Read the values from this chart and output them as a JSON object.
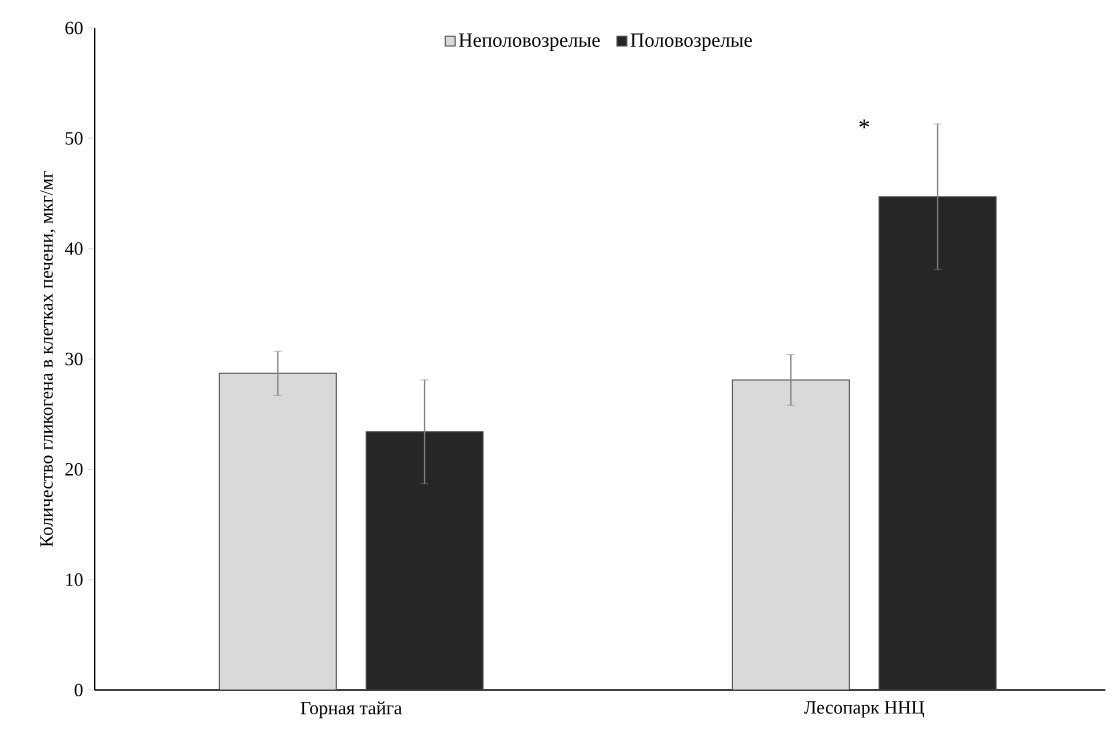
{
  "chart_data": {
    "type": "bar",
    "ylabel": "Количество гликогена в клетках печени, мкг/мг",
    "categories": [
      "Горная тайга",
      "Лесопарк ННЦ"
    ],
    "series": [
      {
        "name": "Неполовозрелые",
        "color": "#d9d9d9",
        "values": [
          28.7,
          28.1
        ],
        "errors": [
          2.0,
          2.3
        ]
      },
      {
        "name": "Половозрелые",
        "color": "#262626",
        "values": [
          23.4,
          44.7
        ],
        "errors": [
          4.7,
          6.6
        ]
      }
    ],
    "ylim": [
      0,
      60
    ],
    "yticks": [
      0,
      10,
      20,
      30,
      40,
      50,
      60
    ],
    "legend": "top",
    "grid": false,
    "annotations": [
      "*"
    ]
  }
}
